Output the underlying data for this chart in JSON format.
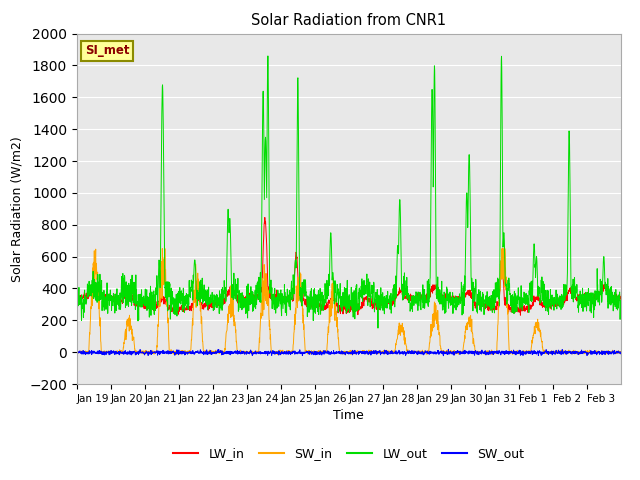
{
  "title": "Solar Radiation from CNR1",
  "xlabel": "Time",
  "ylabel": "Solar Radiation (W/m2)",
  "ylim": [
    -200,
    2000
  ],
  "yticks": [
    -200,
    0,
    200,
    400,
    600,
    800,
    1000,
    1200,
    1400,
    1600,
    1800,
    2000
  ],
  "annotation_text": "SI_met",
  "annotation_color": "#8B0000",
  "annotation_bg": "#FFFF99",
  "annotation_border": "#8B8B00",
  "fig_bg": "#FFFFFF",
  "plot_bg": "#E8E8E8",
  "grid_color": "#FFFFFF",
  "line_colors": {
    "LW_in": "#FF0000",
    "SW_in": "#FFA500",
    "LW_out": "#00DD00",
    "SW_out": "#0000FF"
  },
  "legend_labels": [
    "LW_in",
    "SW_in",
    "LW_out",
    "SW_out"
  ],
  "n_days": 16,
  "points_per_day": 144,
  "x_tick_labels": [
    "Jan 19",
    "Jan 20",
    "Jan 21",
    "Jan 22",
    "Jan 23",
    "Jan 24",
    "Jan 25",
    "Jan 26",
    "Jan 27",
    "Jan 28",
    "Jan 29",
    "Jan 30",
    "Jan 31",
    "Feb 1",
    "Feb 2",
    "Feb 3"
  ]
}
